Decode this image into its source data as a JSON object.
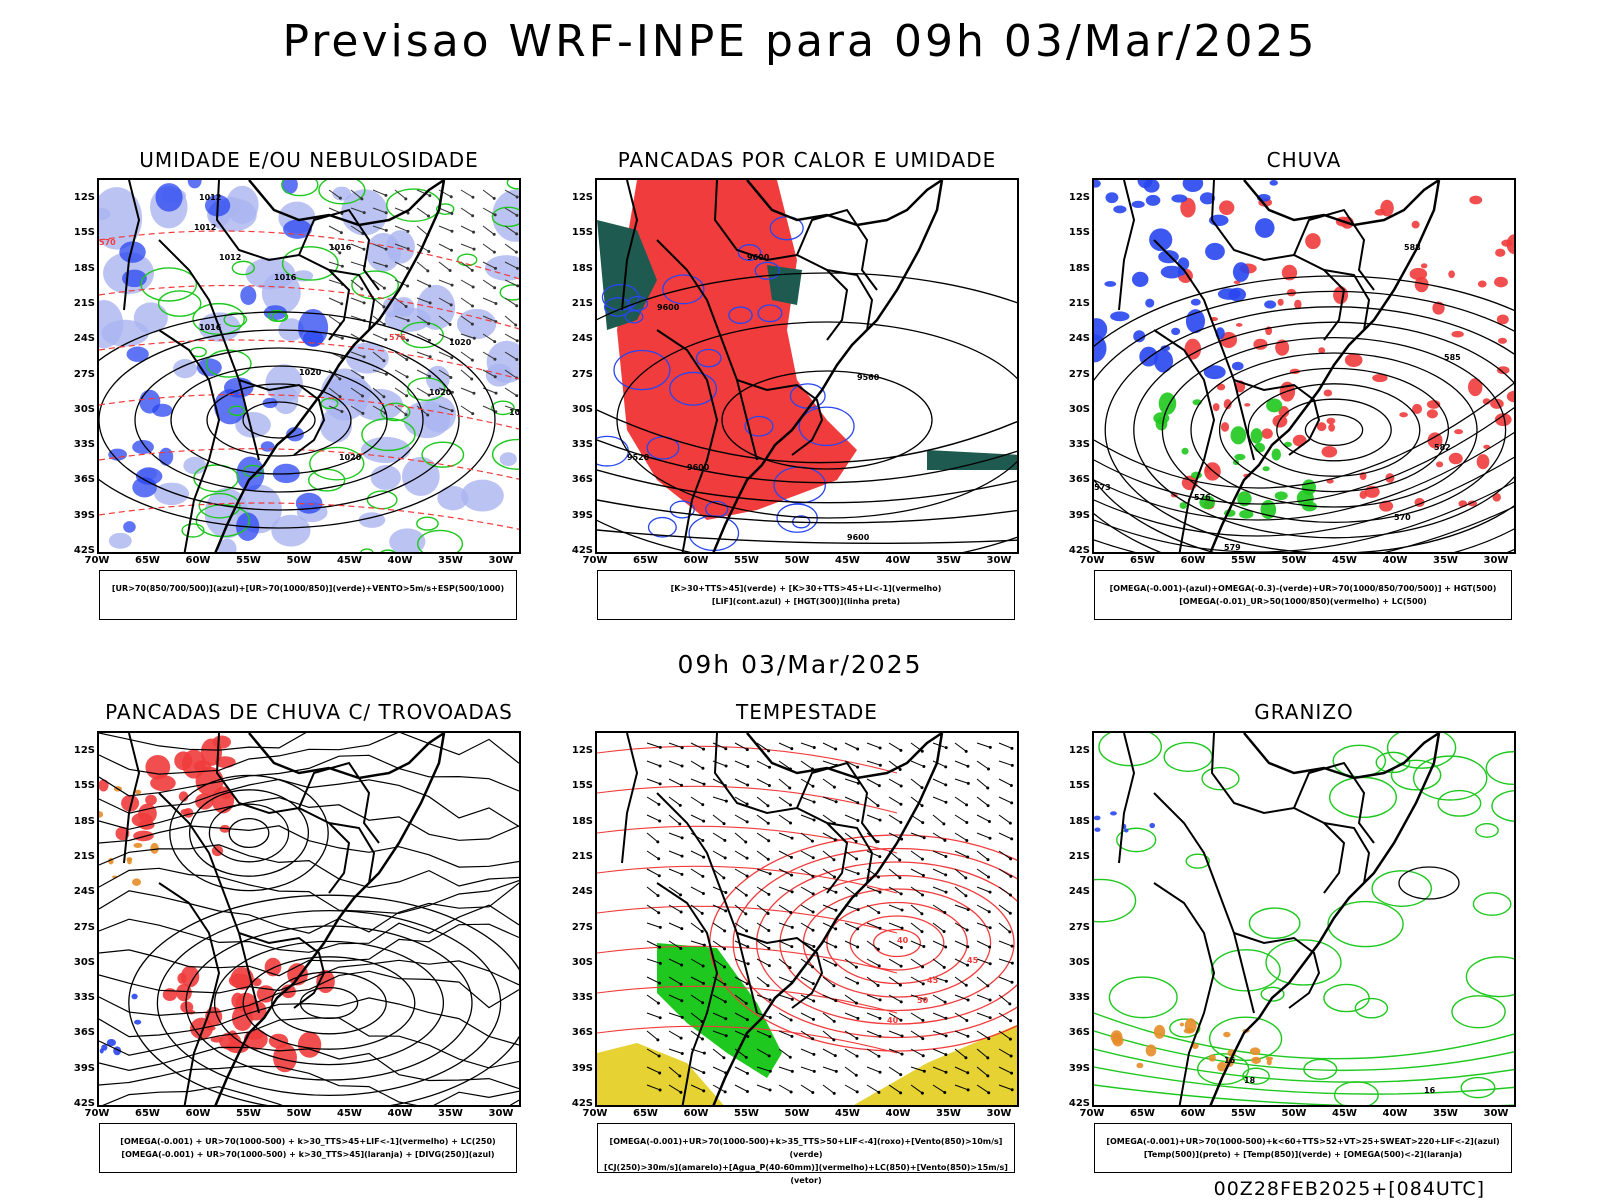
{
  "header": {
    "title": "Previsao WRF-INPE  para 09h 03/Mar/2025",
    "middle_title": "09h 03/Mar/2025",
    "footer": "00Z28FEB2025+[084UTC]"
  },
  "axes": {
    "lat_labels": [
      "12S",
      "15S",
      "18S",
      "21S",
      "24S",
      "27S",
      "30S",
      "33S",
      "36S",
      "39S",
      "42S"
    ],
    "lon_labels": [
      "70W",
      "65W",
      "60W",
      "55W",
      "50W",
      "45W",
      "40W",
      "35W",
      "30W"
    ]
  },
  "colors": {
    "red": "#f03c3c",
    "green": "#1ec81e",
    "blue": "#2846f0",
    "lightblue": "#aab4f0",
    "teal": "#1e5a50",
    "yellow": "#e6d232",
    "orange": "#e68c28"
  },
  "panels": [
    {
      "id": "umidade",
      "title": "UMIDADE E/OU NEBULOSIDADE",
      "legend_lines": [
        "[UR>70(850/700/500)](azul)+[UR>70(1000/850)](verde)+VENTO>5m/s+ESP(500/1000)"
      ],
      "contour_labels": [
        "1012",
        "1012",
        "1012",
        "1016",
        "1016",
        "1016",
        "1020",
        "1020",
        "1020",
        "1020",
        "1024",
        "570",
        "576"
      ]
    },
    {
      "id": "pancadas-calor",
      "title": "PANCADAS POR CALOR E UMIDADE",
      "legend_lines": [
        "[K>30+TTS>45](verde) + [K>30+TTS>45+LI<-1](vermelho)",
        "[LIF](cont.azul) + [HGT(300)](linha preta)"
      ],
      "contour_labels": [
        "9600",
        "9600",
        "9560",
        "9520",
        "9600",
        "9600"
      ]
    },
    {
      "id": "chuva",
      "title": "CHUVA",
      "legend_lines": [
        "[OMEGA(-0.001)-(azul)+OMEGA(-0.3)-(verde)+UR>70(1000/850/700/500)] + HGT(500)",
        "[OMEGA(-0.01)_UR>50(1000/850)(vermelho) + LC(500)"
      ],
      "contour_labels": [
        "588",
        "585",
        "582",
        "579",
        "576",
        "573",
        "570"
      ]
    },
    {
      "id": "pancadas-trovoadas",
      "title": "PANCADAS DE CHUVA C/ TROVOADAS",
      "legend_lines": [
        "[OMEGA(-0.001) + UR>70(1000-500) + k>30_TTS>45+LIF<-1](vermelho) + LC(250)",
        "[OMEGA(-0.001) + UR>70(1000-500) + k>30_TTS>45](laranja) + [DIVG(250)](azul)"
      ],
      "contour_labels": []
    },
    {
      "id": "tempestade",
      "title": "TEMPESTADE",
      "legend_lines": [
        "[OMEGA(-0.001)+UR>70(1000-500)+k>35_TTS>50+LIF<-4](roxo)+[Vento(850)>10m/s](verde)",
        "[CJ(250)>30m/s](amarelo)+[Agua_P(40-60mm)](vermelho)+LC(850)+[Vento(850)>15m/s](vetor)"
      ],
      "contour_labels": [
        "40",
        "45",
        "50",
        "40",
        "45"
      ]
    },
    {
      "id": "granizo",
      "title": "GRANIZO",
      "legend_lines": [
        "[OMEGA(-0.001)+UR>70(1000-500)+k<60+TTS>52+VT>25+SWEAT>220+LIF<-2](azul)",
        "[Temp(500)](preto) + [Temp(850)](verde) + [OMEGA(500)<-2](laranja)"
      ],
      "contour_labels": [
        "16",
        "18",
        "16"
      ]
    }
  ]
}
